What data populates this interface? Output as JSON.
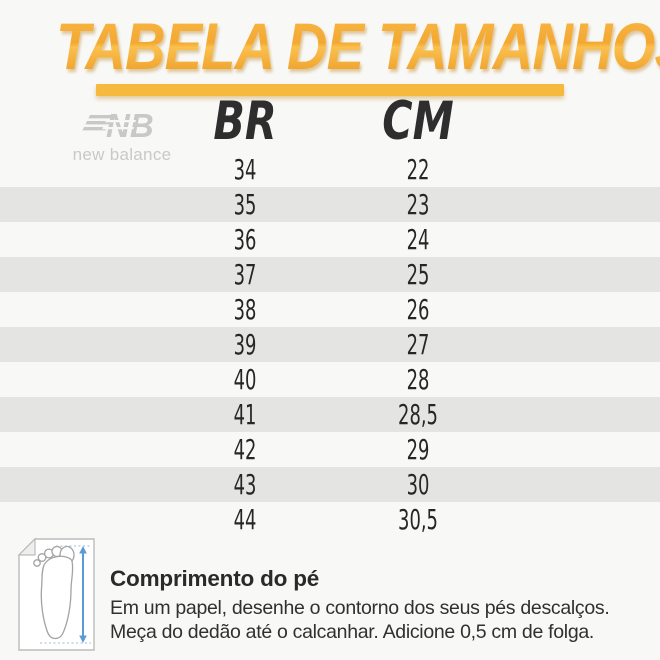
{
  "colors": {
    "background": "#f8f8f6",
    "title_gradient_top": "#f9b845",
    "title_gradient_bottom": "#ec9a24",
    "underline": "#f7b93d",
    "zebra_row": "#e4e4e3",
    "header_text": "#2e2e2e",
    "cell_text": "#262626",
    "brand_grey": "#c9c9c9",
    "measure_arrow_blue": "#5b9bd5"
  },
  "title": {
    "text": "TABELA DE TAMANHOS"
  },
  "brand": {
    "monogram": "NB",
    "wordmark": "new balance"
  },
  "table": {
    "columns": [
      {
        "label": "BR"
      },
      {
        "label": "CM"
      }
    ],
    "rows": [
      {
        "br": "34",
        "cm": "22"
      },
      {
        "br": "35",
        "cm": "23"
      },
      {
        "br": "36",
        "cm": "24"
      },
      {
        "br": "37",
        "cm": "25"
      },
      {
        "br": "38",
        "cm": "26"
      },
      {
        "br": "39",
        "cm": "27"
      },
      {
        "br": "40",
        "cm": "28"
      },
      {
        "br": "41",
        "cm": "28,5"
      },
      {
        "br": "42",
        "cm": "29"
      },
      {
        "br": "43",
        "cm": "30"
      },
      {
        "br": "44",
        "cm": "30,5"
      }
    ]
  },
  "instructions": {
    "heading": "Comprimento do pé",
    "line1": "Em um papel, desenhe o contorno dos seus pés descalços.",
    "line2": "Meça do dedão até o calcanhar. Adicione 0,5 cm de folga.",
    "diagram_icon": "foot-measurement-diagram"
  },
  "chart_data": {
    "type": "table",
    "title": "TABELA DE TAMANHOS",
    "columns": [
      "BR",
      "CM"
    ],
    "rows": [
      [
        34,
        22
      ],
      [
        35,
        23
      ],
      [
        36,
        24
      ],
      [
        37,
        25
      ],
      [
        38,
        26
      ],
      [
        39,
        27
      ],
      [
        40,
        28
      ],
      [
        41,
        28.5
      ],
      [
        42,
        29
      ],
      [
        43,
        30
      ],
      [
        44,
        30.5
      ]
    ]
  }
}
